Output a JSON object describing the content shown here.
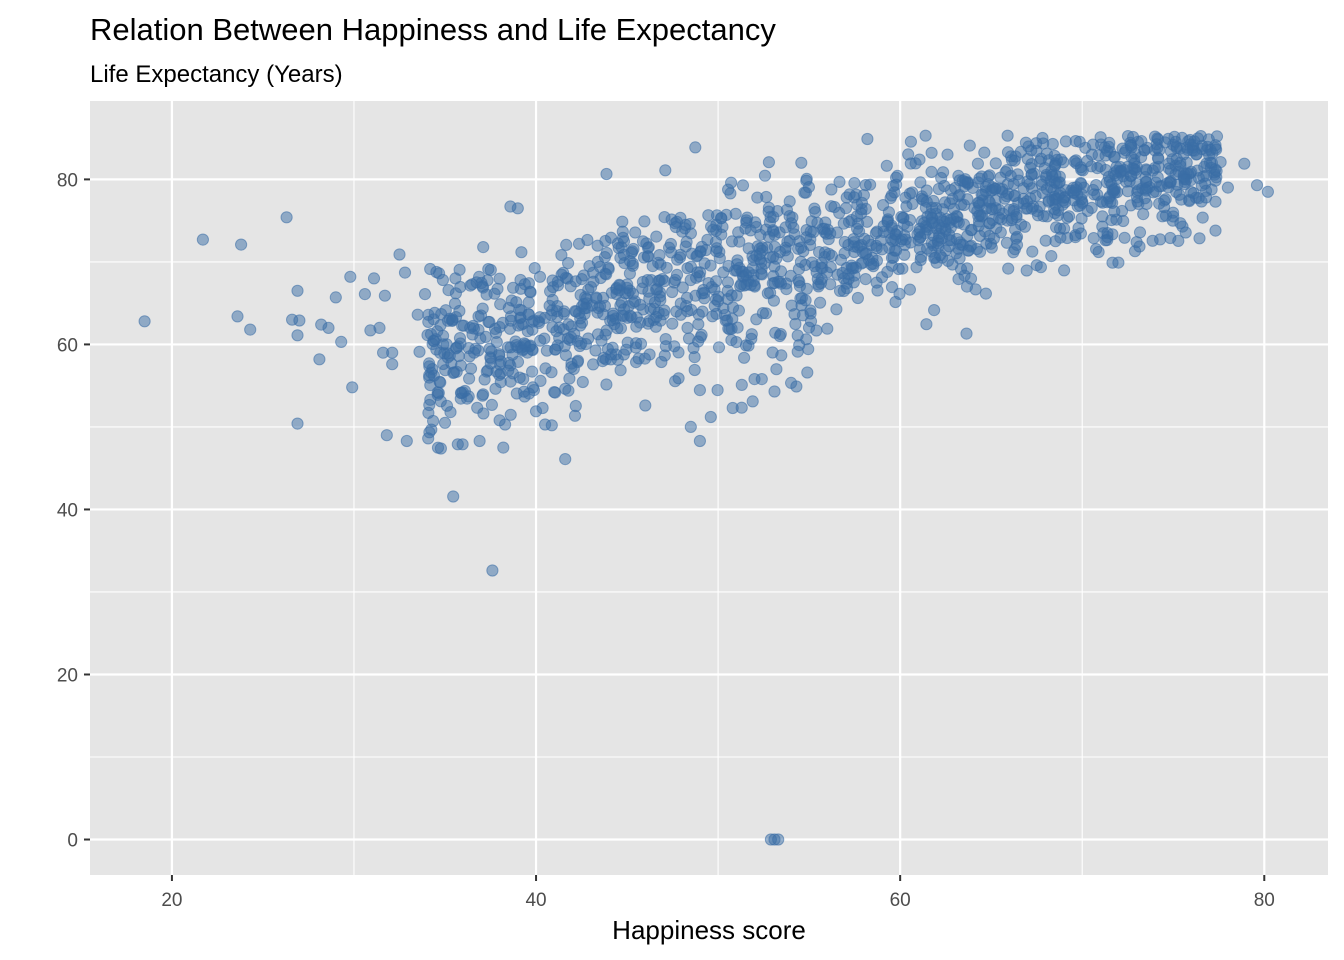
{
  "chart_data": {
    "type": "scatter",
    "title": "Relation Between Happiness and Life Expectancy",
    "subtitle": "Life Expectancy (Years)",
    "xlabel": "Happiness score",
    "ylabel": "",
    "xlim": [
      15.5,
      83.5
    ],
    "ylim": [
      -4.3,
      89.5
    ],
    "x_ticks": [
      20,
      40,
      60,
      80
    ],
    "y_ticks": [
      0,
      20,
      40,
      60,
      80
    ],
    "grid": true,
    "legend": "none",
    "point_color": "#3a6ea5",
    "panel_background": "#e5e5e5",
    "series": [
      {
        "points": [
          [
            18.5,
            62.8
          ],
          [
            21.7,
            72.7
          ],
          [
            23.6,
            63.4
          ],
          [
            23.8,
            72.1
          ],
          [
            24.3,
            61.8
          ],
          [
            26.3,
            75.4
          ],
          [
            26.6,
            63.0
          ],
          [
            26.9,
            66.5
          ],
          [
            26.9,
            61.1
          ],
          [
            27.0,
            62.9
          ],
          [
            26.9,
            50.4
          ],
          [
            28.1,
            58.2
          ],
          [
            28.2,
            62.4
          ],
          [
            28.6,
            62.0
          ],
          [
            29.0,
            65.7
          ],
          [
            29.3,
            60.3
          ],
          [
            29.8,
            68.2
          ],
          [
            29.9,
            54.8
          ],
          [
            30.6,
            66.1
          ],
          [
            30.9,
            61.7
          ],
          [
            31.1,
            68.0
          ],
          [
            31.4,
            62.0
          ],
          [
            31.6,
            59.0
          ],
          [
            31.7,
            65.9
          ],
          [
            31.8,
            49.0
          ],
          [
            32.1,
            59.0
          ],
          [
            32.1,
            57.6
          ],
          [
            32.5,
            70.9
          ],
          [
            32.8,
            68.7
          ],
          [
            32.9,
            48.3
          ],
          [
            33.5,
            63.6
          ],
          [
            33.6,
            59.1
          ],
          [
            33.9,
            66.1
          ],
          [
            34.4,
            60.4
          ],
          [
            34.6,
            53.9
          ],
          [
            34.9,
            60.0
          ],
          [
            35.0,
            50.5
          ],
          [
            35.3,
            51.8
          ],
          [
            35.6,
            66.2
          ],
          [
            35.7,
            47.9
          ],
          [
            35.9,
            54.1
          ],
          [
            36.3,
            53.7
          ],
          [
            36.6,
            59.0
          ],
          [
            36.9,
            48.3
          ],
          [
            37.1,
            71.8
          ],
          [
            37.6,
            32.6
          ],
          [
            37.8,
            61.4
          ],
          [
            38.0,
            50.8
          ],
          [
            38.2,
            47.5
          ],
          [
            38.3,
            50.3
          ],
          [
            38.6,
            55.5
          ],
          [
            39.0,
            76.5
          ],
          [
            40.0,
            51.9
          ],
          [
            40.5,
            50.3
          ],
          [
            41.6,
            46.1
          ],
          [
            47.1,
            81.1
          ],
          [
            46.0,
            52.6
          ],
          [
            48.5,
            50.0
          ],
          [
            49.0,
            48.3
          ],
          [
            49.6,
            51.2
          ],
          [
            50.8,
            52.3
          ],
          [
            51.3,
            55.1
          ],
          [
            52.0,
            55.8
          ],
          [
            52.4,
            55.8
          ],
          [
            51.9,
            53.1
          ],
          [
            53.1,
            54.3
          ],
          [
            53.2,
            57.0
          ],
          [
            54.3,
            54.9
          ],
          [
            54.9,
            56.6
          ],
          [
            55.1,
            62.8
          ],
          [
            56.0,
            61.9
          ],
          [
            58.2,
            84.9
          ],
          [
            61.4,
            85.3
          ],
          [
            62.6,
            83.0
          ],
          [
            65.9,
            85.3
          ],
          [
            67.5,
            69.6
          ],
          [
            68.3,
            70.7
          ],
          [
            70.9,
            71.2
          ],
          [
            72.9,
            71.3
          ],
          [
            74.6,
            75.6
          ],
          [
            75.0,
            75.5
          ],
          [
            77.6,
            82.1
          ],
          [
            78.0,
            79.0
          ],
          [
            78.9,
            81.9
          ],
          [
            79.6,
            79.3
          ],
          [
            80.2,
            78.5
          ],
          [
            52.9,
            0
          ],
          [
            53.1,
            0
          ],
          [
            53.3,
            0
          ]
        ]
      }
    ]
  }
}
